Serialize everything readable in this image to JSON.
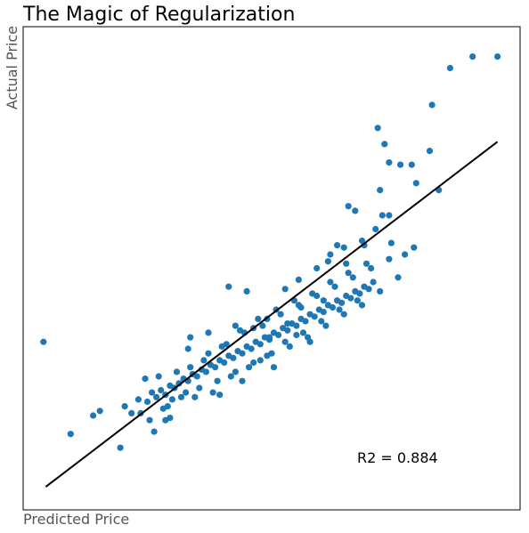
{
  "colors": {
    "points": "#1f77b4",
    "fit_line": "#000000",
    "axis_label": "#555555",
    "frame": "#000000",
    "background": "#ffffff"
  },
  "chart_data": {
    "type": "scatter",
    "title": "The Magic of Regularization",
    "xlabel": "Predicted Price",
    "ylabel": "Actual Price",
    "ticks_visible": false,
    "grid": false,
    "xlim": [
      -0.5,
      10.5
    ],
    "ylim": [
      -0.5,
      10.0
    ],
    "annotation": "R2 = 0.884",
    "fit_line": [
      [
        0.0,
        0.0
      ],
      [
        10.0,
        7.5
      ]
    ],
    "points": [
      [
        -0.05,
        3.15
      ],
      [
        1.2,
        1.65
      ],
      [
        1.65,
        0.85
      ],
      [
        0.55,
        1.15
      ],
      [
        2.1,
        1.6
      ],
      [
        1.05,
        1.55
      ],
      [
        2.75,
        1.5
      ],
      [
        2.8,
        1.9
      ],
      [
        3.15,
        3.0
      ],
      [
        4.05,
        4.35
      ],
      [
        9.45,
        9.35
      ],
      [
        10.0,
        9.35
      ],
      [
        8.95,
        9.1
      ],
      [
        8.55,
        8.3
      ],
      [
        7.5,
        7.45
      ],
      [
        7.35,
        7.8
      ],
      [
        7.6,
        7.05
      ],
      [
        7.4,
        6.45
      ],
      [
        7.85,
        7.0
      ],
      [
        6.7,
        6.1
      ],
      [
        6.85,
        6.0
      ],
      [
        7.45,
        5.9
      ],
      [
        7.6,
        5.9
      ],
      [
        6.45,
        5.25
      ],
      [
        8.2,
        6.6
      ],
      [
        8.7,
        6.45
      ],
      [
        8.1,
        7.0
      ],
      [
        8.5,
        7.3
      ],
      [
        4.45,
        4.25
      ],
      [
        6.25,
        4.9
      ],
      [
        5.85,
        3.15
      ],
      [
        5.55,
        3.3
      ],
      [
        4.95,
        3.25
      ],
      [
        4.6,
        3.45
      ],
      [
        1.75,
        1.75
      ],
      [
        1.9,
        1.6
      ],
      [
        2.05,
        1.9
      ],
      [
        2.25,
        1.85
      ],
      [
        2.35,
        2.05
      ],
      [
        2.45,
        1.95
      ],
      [
        2.55,
        2.1
      ],
      [
        2.65,
        2.0
      ],
      [
        2.75,
        2.2
      ],
      [
        2.85,
        2.15
      ],
      [
        2.95,
        2.25
      ],
      [
        3.05,
        2.35
      ],
      [
        3.15,
        2.3
      ],
      [
        3.25,
        2.45
      ],
      [
        3.35,
        2.4
      ],
      [
        3.45,
        2.55
      ],
      [
        3.55,
        2.5
      ],
      [
        3.65,
        2.65
      ],
      [
        3.75,
        2.6
      ],
      [
        3.85,
        2.75
      ],
      [
        3.95,
        2.7
      ],
      [
        4.05,
        2.85
      ],
      [
        4.15,
        2.8
      ],
      [
        4.25,
        2.95
      ],
      [
        4.35,
        2.9
      ],
      [
        4.45,
        3.05
      ],
      [
        4.55,
        3.0
      ],
      [
        4.65,
        3.15
      ],
      [
        4.75,
        3.1
      ],
      [
        4.85,
        3.25
      ],
      [
        4.95,
        3.2
      ],
      [
        5.05,
        3.35
      ],
      [
        5.15,
        3.3
      ],
      [
        5.25,
        3.45
      ],
      [
        5.35,
        3.4
      ],
      [
        5.45,
        3.55
      ],
      [
        5.55,
        3.5
      ],
      [
        5.65,
        3.65
      ],
      [
        5.75,
        3.6
      ],
      [
        5.85,
        3.75
      ],
      [
        5.95,
        3.7
      ],
      [
        6.05,
        3.85
      ],
      [
        6.15,
        3.8
      ],
      [
        6.25,
        3.95
      ],
      [
        6.35,
        3.9
      ],
      [
        6.45,
        4.05
      ],
      [
        6.55,
        4.0
      ],
      [
        6.65,
        4.15
      ],
      [
        6.75,
        4.1
      ],
      [
        6.85,
        4.25
      ],
      [
        6.95,
        4.2
      ],
      [
        7.05,
        4.35
      ],
      [
        7.15,
        4.3
      ],
      [
        7.25,
        4.45
      ],
      [
        2.2,
        2.35
      ],
      [
        2.5,
        2.4
      ],
      [
        2.7,
        1.75
      ],
      [
        3.0,
        1.95
      ],
      [
        3.2,
        2.6
      ],
      [
        3.4,
        2.15
      ],
      [
        3.6,
        2.9
      ],
      [
        3.8,
        2.3
      ],
      [
        4.0,
        3.1
      ],
      [
        4.2,
        2.5
      ],
      [
        4.4,
        3.35
      ],
      [
        4.6,
        2.7
      ],
      [
        4.8,
        3.5
      ],
      [
        5.0,
        2.9
      ],
      [
        5.2,
        3.75
      ],
      [
        5.4,
        3.05
      ],
      [
        5.6,
        3.95
      ],
      [
        5.8,
        3.25
      ],
      [
        6.0,
        4.15
      ],
      [
        6.2,
        3.5
      ],
      [
        6.4,
        4.35
      ],
      [
        6.6,
        3.75
      ],
      [
        6.8,
        4.55
      ],
      [
        7.0,
        3.95
      ],
      [
        7.2,
        4.75
      ],
      [
        7.4,
        4.25
      ],
      [
        7.6,
        4.95
      ],
      [
        7.8,
        4.55
      ],
      [
        2.3,
        1.45
      ],
      [
        2.6,
        1.7
      ],
      [
        2.9,
        2.5
      ],
      [
        3.1,
        2.05
      ],
      [
        3.3,
        1.95
      ],
      [
        3.5,
        2.75
      ],
      [
        3.7,
        2.05
      ],
      [
        3.9,
        3.05
      ],
      [
        4.1,
        2.4
      ],
      [
        4.3,
        3.4
      ],
      [
        4.5,
        2.6
      ],
      [
        4.7,
        3.65
      ],
      [
        4.9,
        2.85
      ],
      [
        5.1,
        3.85
      ],
      [
        5.3,
        3.15
      ],
      [
        5.5,
        4.05
      ],
      [
        5.7,
        3.35
      ],
      [
        5.9,
        4.2
      ],
      [
        6.1,
        3.6
      ],
      [
        6.3,
        4.45
      ],
      [
        6.5,
        3.85
      ],
      [
        6.7,
        4.65
      ],
      [
        6.9,
        4.05
      ],
      [
        7.1,
        4.85
      ],
      [
        3.2,
        3.25
      ],
      [
        3.6,
        3.35
      ],
      [
        4.2,
        3.5
      ],
      [
        4.9,
        3.65
      ],
      [
        5.3,
        4.3
      ],
      [
        5.6,
        4.5
      ],
      [
        6.0,
        4.75
      ],
      [
        6.3,
        5.05
      ],
      [
        6.6,
        5.2
      ],
      [
        7.0,
        5.35
      ],
      [
        5.05,
        2.6
      ],
      [
        4.35,
        2.3
      ],
      [
        3.85,
        2.0
      ],
      [
        2.4,
        1.2
      ],
      [
        2.65,
        1.45
      ],
      [
        7.3,
        5.6
      ],
      [
        7.65,
        5.3
      ],
      [
        7.95,
        5.05
      ],
      [
        8.15,
        5.2
      ],
      [
        7.05,
        5.25
      ],
      [
        6.65,
        4.85
      ],
      [
        6.15,
        4.05
      ],
      [
        5.65,
        3.9
      ],
      [
        5.35,
        3.55
      ],
      [
        4.75,
        2.75
      ]
    ]
  }
}
